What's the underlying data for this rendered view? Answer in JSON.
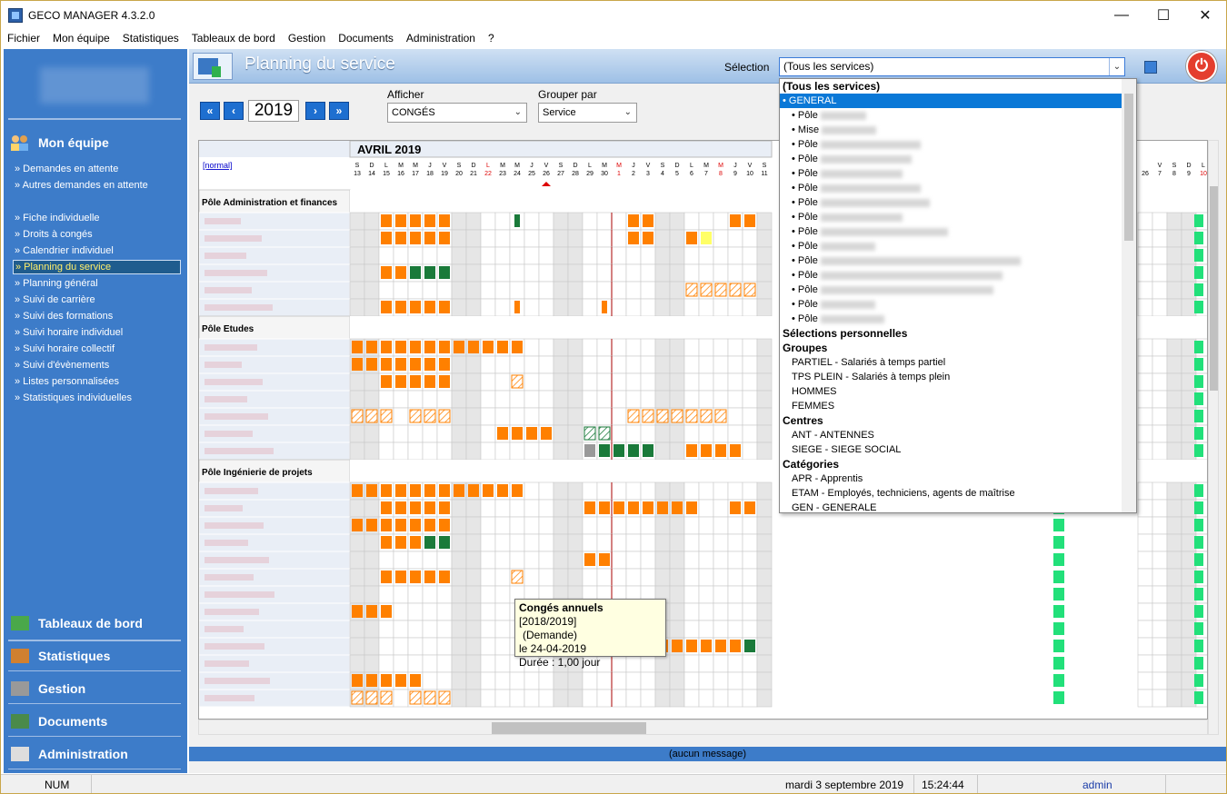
{
  "window": {
    "title": "GECO MANAGER 4.3.2.0"
  },
  "menu": [
    "Fichier",
    "Mon équipe",
    "Statistiques",
    "Tableaux de bord",
    "Gestion",
    "Documents",
    "Administration",
    "?"
  ],
  "sidebar": {
    "section_title": "Mon équipe",
    "items_a": [
      "» Demandes en attente",
      "» Autres demandes en attente"
    ],
    "items_b": [
      "» Fiche individuelle",
      "» Droits à congés",
      "» Calendrier individuel",
      "» Planning du service",
      "» Planning général",
      "» Suivi de carrière",
      "» Suivi des formations",
      "» Suivi horaire individuel",
      "» Suivi horaire collectif",
      "» Suivi d'évènements",
      "» Listes personnalisées",
      "» Statistiques individuelles"
    ],
    "active_item": "» Planning du service",
    "bottom": [
      "Tableaux de bord",
      "Statistiques",
      "Gestion",
      "Documents",
      "Administration"
    ]
  },
  "header": {
    "title": "Planning du service",
    "selection_label": "Sélection",
    "selection_value": "(Tous les services)"
  },
  "nav": {
    "year": "2019",
    "afficher_label": "Afficher",
    "afficher_value": "CONGÉS",
    "grouper_label": "Grouper par",
    "grouper_value": "Service"
  },
  "grid": {
    "month": "AVRIL  2019",
    "normal_link": "[normal]",
    "groups": [
      "Pôle Administration et finances",
      "Pôle Etudes",
      "Pôle Ingénierie de projets"
    ],
    "colors": {
      "conge": "#ff8000",
      "green": "#1a7a3a",
      "lightgreen": "#22e07a",
      "yellow": "#ffff66",
      "weekend": "#e6e6e6",
      "hatch": "#ff8000",
      "header_blue": "#3d7cc9"
    },
    "days": [
      {
        "d": "S",
        "n": "13"
      },
      {
        "d": "D",
        "n": "14"
      },
      {
        "d": "L",
        "n": "15"
      },
      {
        "d": "M",
        "n": "16"
      },
      {
        "d": "M",
        "n": "17"
      },
      {
        "d": "J",
        "n": "18"
      },
      {
        "d": "V",
        "n": "19"
      },
      {
        "d": "S",
        "n": "20"
      },
      {
        "d": "D",
        "n": "21"
      },
      {
        "d": "L",
        "n": "22"
      },
      {
        "d": "M",
        "n": "23"
      },
      {
        "d": "M",
        "n": "24"
      },
      {
        "d": "J",
        "n": "25"
      },
      {
        "d": "V",
        "n": "26"
      },
      {
        "d": "S",
        "n": "27"
      },
      {
        "d": "D",
        "n": "28"
      },
      {
        "d": "L",
        "n": "29"
      },
      {
        "d": "M",
        "n": "30"
      },
      {
        "d": "M",
        "n": "1"
      },
      {
        "d": "J",
        "n": "2"
      },
      {
        "d": "V",
        "n": "3"
      },
      {
        "d": "S",
        "n": "4"
      },
      {
        "d": "D",
        "n": "5"
      },
      {
        "d": "L",
        "n": "6"
      },
      {
        "d": "M",
        "n": "7"
      },
      {
        "d": "M",
        "n": "8"
      },
      {
        "d": "J",
        "n": "9"
      },
      {
        "d": "V",
        "n": "10"
      },
      {
        "d": "S",
        "n": "11"
      }
    ],
    "right_days": [
      {
        "d": "",
        "n": "26"
      },
      {
        "d": "V",
        "n": "7"
      },
      {
        "d": "S",
        "n": "8"
      },
      {
        "d": "D",
        "n": "9"
      },
      {
        "d": "L",
        "n": "10"
      }
    ]
  },
  "dropdown": {
    "top": "(Tous les services)",
    "selected": "• GENERAL",
    "poles": [
      "• Pôle",
      "• Mise",
      "• Pôle",
      "• Pôle",
      "• Pôle",
      "• Pôle",
      "• Pôle",
      "• Pôle",
      "• Pôle",
      "• Pôle",
      "• Pôle",
      "• Pôle",
      "• Pôle",
      "• Pôle",
      "• Pôle"
    ],
    "sel_perso": "Sélections personnelles",
    "groupes": "Groupes",
    "groupes_items": [
      "PARTIEL - Salariés à temps partiel",
      "TPS PLEIN - Salariés à temps plein",
      "HOMMES",
      "FEMMES"
    ],
    "centres": "Centres",
    "centres_items": [
      "ANT - ANTENNES",
      "SIEGE - SIEGE SOCIAL"
    ],
    "categories": "Catégories",
    "categories_items": [
      "APR - Apprentis",
      "ETAM - Employés, techniciens, agents de maîtrise",
      "GEN - GENERALE"
    ]
  },
  "tooltip": {
    "title": "Congés annuels",
    "period": "[2018/2019]",
    "status": "(Demande)",
    "date": "le 24-04-2019",
    "duration": "Durée : 1,00 jour"
  },
  "message": "(aucun message)",
  "status": {
    "num": "NUM",
    "date": "mardi 3 septembre 2019",
    "time": "15:24:44",
    "user": "admin"
  }
}
